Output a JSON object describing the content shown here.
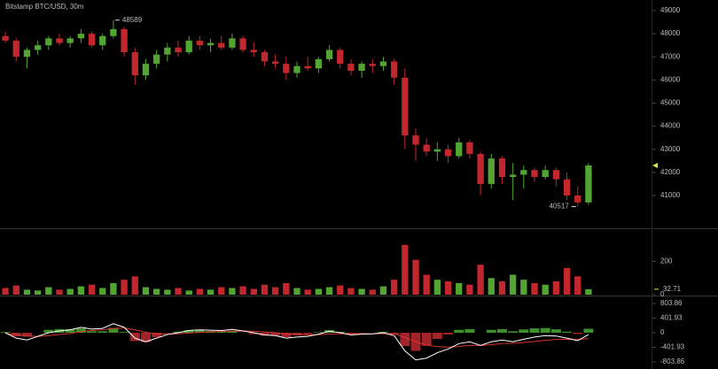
{
  "chart_data": [
    {
      "type": "candlestick",
      "title": "Bitstamp BTC/USD, 30m",
      "ohlc": [
        [
          47900,
          48100,
          47600,
          47700
        ],
        [
          47700,
          47800,
          46800,
          47000
        ],
        [
          47000,
          47400,
          46500,
          47300
        ],
        [
          47300,
          47700,
          47100,
          47500
        ],
        [
          47500,
          47900,
          47300,
          47800
        ],
        [
          47800,
          48000,
          47500,
          47600
        ],
        [
          47600,
          47900,
          47400,
          47800
        ],
        [
          47800,
          48200,
          47600,
          48000
        ],
        [
          48000,
          48100,
          47400,
          47500
        ],
        [
          47500,
          48000,
          47300,
          47900
        ],
        [
          47900,
          48589,
          47800,
          48200
        ],
        [
          48200,
          48300,
          47000,
          47200
        ],
        [
          47200,
          47400,
          45800,
          46200
        ],
        [
          46200,
          46900,
          46000,
          46700
        ],
        [
          46700,
          47300,
          46500,
          47100
        ],
        [
          47100,
          47600,
          46800,
          47400
        ],
        [
          47400,
          47700,
          47000,
          47200
        ],
        [
          47200,
          47900,
          47100,
          47700
        ],
        [
          47700,
          47900,
          47300,
          47500
        ],
        [
          47500,
          47800,
          47200,
          47600
        ],
        [
          47600,
          47900,
          47300,
          47400
        ],
        [
          47400,
          48000,
          47300,
          47800
        ],
        [
          47800,
          47900,
          47200,
          47300
        ],
        [
          47300,
          47600,
          47000,
          47200
        ],
        [
          47200,
          47300,
          46600,
          46800
        ],
        [
          46800,
          47100,
          46500,
          46700
        ],
        [
          46700,
          47000,
          46000,
          46300
        ],
        [
          46300,
          46800,
          46100,
          46600
        ],
        [
          46600,
          47000,
          46400,
          46500
        ],
        [
          46500,
          47000,
          46300,
          46900
        ],
        [
          46900,
          47500,
          46800,
          47300
        ],
        [
          47300,
          47400,
          46500,
          46700
        ],
        [
          46700,
          46900,
          46200,
          46400
        ],
        [
          46400,
          46800,
          46100,
          46700
        ],
        [
          46700,
          46900,
          46300,
          46600
        ],
        [
          46600,
          47000,
          46400,
          46800
        ],
        [
          46800,
          46900,
          45800,
          46100
        ],
        [
          46100,
          46500,
          43000,
          43600
        ],
        [
          43600,
          43900,
          42500,
          43200
        ],
        [
          43200,
          43500,
          42700,
          42900
        ],
        [
          42900,
          43300,
          42500,
          43000
        ],
        [
          43000,
          43200,
          42400,
          42700
        ],
        [
          42700,
          43500,
          42600,
          43300
        ],
        [
          43300,
          43400,
          42600,
          42800
        ],
        [
          42800,
          42900,
          41000,
          41500
        ],
        [
          41500,
          42800,
          41300,
          42600
        ],
        [
          42600,
          42700,
          41500,
          41800
        ],
        [
          41800,
          42400,
          40800,
          41900
        ],
        [
          41900,
          42300,
          41300,
          42100
        ],
        [
          42100,
          42200,
          41600,
          41800
        ],
        [
          41800,
          42300,
          41700,
          42100
        ],
        [
          42100,
          42200,
          41400,
          41700
        ],
        [
          41700,
          42000,
          40800,
          41000
        ],
        [
          41000,
          41400,
          40517,
          40700
        ],
        [
          40700,
          42400,
          40600,
          42300
        ]
      ],
      "ylim": [
        39580,
        49460
      ],
      "yticks": [
        41000,
        42000,
        43000,
        44000,
        45000,
        46000,
        47000,
        48000,
        49000
      ],
      "high_annotation": 48589,
      "low_annotation": 40517,
      "up_color": "#53a533",
      "down_color": "#c3272e"
    },
    {
      "type": "bar",
      "values": [
        40,
        55,
        30,
        25,
        45,
        30,
        35,
        50,
        60,
        40,
        70,
        90,
        110,
        45,
        35,
        30,
        40,
        25,
        35,
        30,
        45,
        40,
        50,
        35,
        60,
        45,
        70,
        40,
        30,
        35,
        45,
        55,
        40,
        35,
        30,
        50,
        90,
        300,
        210,
        120,
        90,
        80,
        70,
        60,
        180,
        100,
        80,
        120,
        90,
        70,
        60,
        80,
        160,
        110,
        32.71
      ],
      "ylim": [
        0,
        394
      ],
      "yticks": [
        0,
        200
      ],
      "up_color": "#53a533",
      "down_color": "#c3272e",
      "last_label_color": "#d6e84a"
    },
    {
      "type": "macd",
      "macd": {
        "color": "#ffffff",
        "values": [
          0,
          -150,
          -200,
          -100,
          0,
          50,
          80,
          150,
          100,
          120,
          250,
          150,
          -150,
          -250,
          -150,
          -50,
          0,
          60,
          80,
          70,
          60,
          90,
          50,
          0,
          -60,
          -80,
          -150,
          -120,
          -100,
          -40,
          40,
          0,
          -60,
          -40,
          -30,
          0,
          -80,
          -500,
          -750,
          -700,
          -550,
          -450,
          -300,
          -250,
          -350,
          -250,
          -200,
          -250,
          -180,
          -120,
          -80,
          -90,
          -150,
          -220,
          -50
        ]
      },
      "signal": {
        "color": "#d9342b",
        "values": [
          -20,
          -50,
          -90,
          -100,
          -80,
          -50,
          -20,
          30,
          60,
          80,
          120,
          130,
          80,
          10,
          -30,
          -40,
          -30,
          -10,
          10,
          25,
          35,
          45,
          50,
          40,
          20,
          0,
          -30,
          -50,
          -60,
          -55,
          -35,
          -25,
          -30,
          -30,
          -30,
          -25,
          -35,
          -130,
          -250,
          -340,
          -380,
          -400,
          -380,
          -350,
          -350,
          -330,
          -300,
          -290,
          -270,
          -240,
          -210,
          -185,
          -180,
          -185,
          -160
        ]
      },
      "histogram": {
        "up_color": "#3f8f2c",
        "down_color": "#a3232a",
        "values": [
          20,
          -100,
          -110,
          0,
          80,
          100,
          100,
          120,
          40,
          40,
          130,
          20,
          -230,
          -260,
          -120,
          -10,
          30,
          70,
          70,
          45,
          25,
          45,
          0,
          -40,
          -80,
          -80,
          -120,
          -70,
          -40,
          15,
          75,
          25,
          -30,
          -10,
          0,
          25,
          -45,
          -370,
          -500,
          -360,
          -170,
          -50,
          80,
          100,
          0,
          80,
          100,
          40,
          90,
          120,
          130,
          95,
          30,
          -35,
          110
        ]
      },
      "ylim": [
        -999,
        999
      ],
      "yticks": [
        -803.86,
        -401.93,
        0,
        401.93,
        803.86
      ]
    }
  ]
}
